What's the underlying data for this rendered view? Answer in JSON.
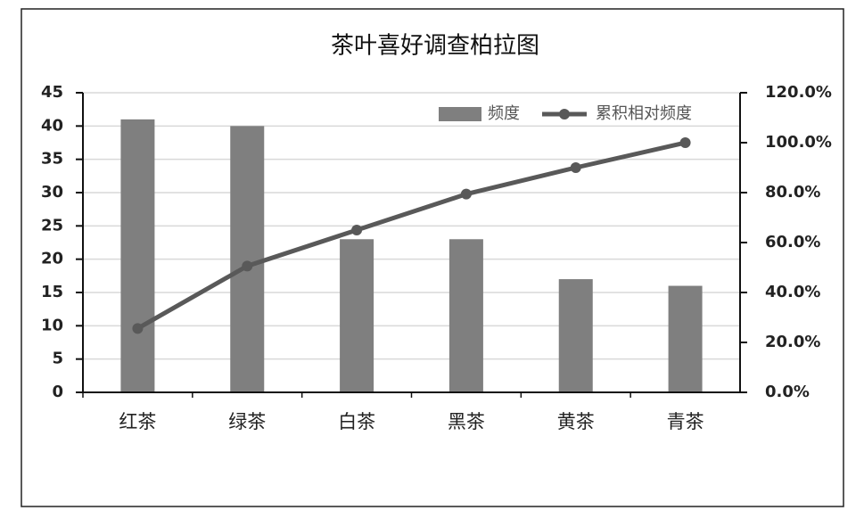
{
  "chart_data": {
    "type": "bar",
    "title": "茶叶喜好调查柏拉图",
    "categories": [
      "红茶",
      "绿茶",
      "白茶",
      "黑茶",
      "黄茶",
      "青茶"
    ],
    "series": [
      {
        "name": "频度",
        "type": "bar",
        "color": "#7f7f7f",
        "values": [
          41,
          40,
          23,
          23,
          17,
          16
        ]
      },
      {
        "name": "累积相对频度",
        "type": "line",
        "axis": "y2",
        "color": "#595959",
        "values": [
          25.6,
          50.6,
          65,
          79.4,
          90,
          100
        ]
      }
    ],
    "ylim": [
      0,
      45
    ],
    "yticks": [
      0,
      5,
      10,
      15,
      20,
      25,
      30,
      35,
      40,
      45
    ],
    "y2lim": [
      0,
      120
    ],
    "y2ticks": [
      {
        "value": 0,
        "label": "0.0%"
      },
      {
        "value": 20,
        "label": "20.0%"
      },
      {
        "value": 40,
        "label": "40.0%"
      },
      {
        "value": 60,
        "label": "60.0%"
      },
      {
        "value": 80,
        "label": "80.0%"
      },
      {
        "value": 100,
        "label": "100.0%"
      },
      {
        "value": 120,
        "label": "120.0%"
      }
    ],
    "grid": true
  }
}
